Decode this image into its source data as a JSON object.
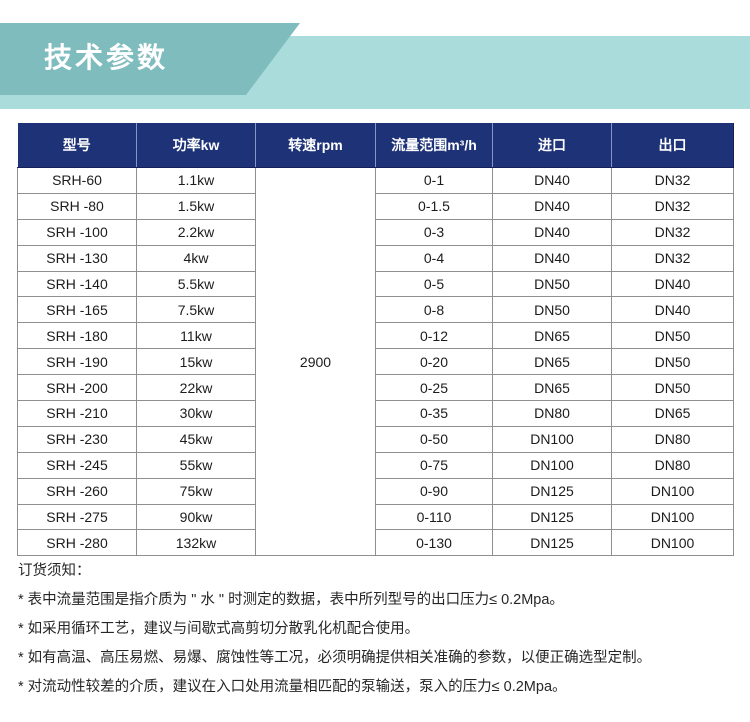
{
  "banner": {
    "title": "技术参数",
    "ribbon_color": "#7fbcbe",
    "band_color": "#aadcdc"
  },
  "table": {
    "header_bg": "#1e3278",
    "headers": [
      "型号",
      "功率kw",
      "转速rpm",
      "流量范围m³/h",
      "进口",
      "出口"
    ],
    "speed_value": "2900",
    "rows": [
      {
        "model": "SRH-60",
        "power": "1.1kw",
        "flow": "0-1",
        "inlet": "DN40",
        "outlet": "DN32"
      },
      {
        "model": "SRH -80",
        "power": "1.5kw",
        "flow": "0-1.5",
        "inlet": "DN40",
        "outlet": "DN32"
      },
      {
        "model": "SRH -100",
        "power": "2.2kw",
        "flow": "0-3",
        "inlet": "DN40",
        "outlet": "DN32"
      },
      {
        "model": "SRH -130",
        "power": "4kw",
        "flow": "0-4",
        "inlet": "DN40",
        "outlet": "DN32"
      },
      {
        "model": "SRH -140",
        "power": "5.5kw",
        "flow": "0-5",
        "inlet": "DN50",
        "outlet": "DN40"
      },
      {
        "model": "SRH -165",
        "power": "7.5kw",
        "flow": "0-8",
        "inlet": "DN50",
        "outlet": "DN40"
      },
      {
        "model": "SRH -180",
        "power": "11kw",
        "flow": "0-12",
        "inlet": "DN65",
        "outlet": "DN50"
      },
      {
        "model": "SRH -190",
        "power": "15kw",
        "flow": "0-20",
        "inlet": "DN65",
        "outlet": "DN50"
      },
      {
        "model": "SRH -200",
        "power": "22kw",
        "flow": "0-25",
        "inlet": "DN65",
        "outlet": "DN50"
      },
      {
        "model": "SRH -210",
        "power": "30kw",
        "flow": "0-35",
        "inlet": "DN80",
        "outlet": "DN65"
      },
      {
        "model": "SRH -230",
        "power": "45kw",
        "flow": "0-50",
        "inlet": "DN100",
        "outlet": "DN80"
      },
      {
        "model": "SRH -245",
        "power": "55kw",
        "flow": "0-75",
        "inlet": "DN100",
        "outlet": "DN80"
      },
      {
        "model": "SRH -260",
        "power": "75kw",
        "flow": "0-90",
        "inlet": "DN125",
        "outlet": "DN100"
      },
      {
        "model": "SRH -275",
        "power": "90kw",
        "flow": "0-110",
        "inlet": "DN125",
        "outlet": "DN100"
      },
      {
        "model": "SRH -280",
        "power": "132kw",
        "flow": "0-130",
        "inlet": "DN125",
        "outlet": "DN100"
      }
    ]
  },
  "notes": {
    "heading": "订货须知：",
    "items": [
      "* 表中流量范围是指介质为 \" 水 \" 时测定的数据，表中所列型号的出口压力≤ 0.2Mpa。",
      "* 如采用循环工艺，建议与间歇式高剪切分散乳化机配合使用。",
      "* 如有高温、高压易燃、易爆、腐蚀性等工况，必须明确提供相关准确的参数，以便正确选型定制。",
      "* 对流动性较差的介质，建议在入口处用流量相匹配的泵输送，泵入的压力≤ 0.2Mpa。"
    ]
  }
}
